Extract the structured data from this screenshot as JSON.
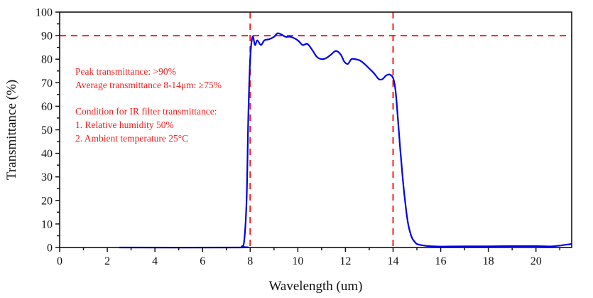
{
  "chart_data": {
    "type": "line",
    "title": "",
    "xlabel": "Wavelength (um)",
    "ylabel": "Transmittance (%)",
    "xlim": [
      0,
      21.5
    ],
    "ylim": [
      0,
      100
    ],
    "xticks": [
      0,
      2,
      4,
      6,
      8,
      10,
      12,
      14,
      16,
      18,
      20
    ],
    "xticks_minor_step": 1,
    "yticks": [
      0,
      10,
      20,
      30,
      40,
      50,
      60,
      70,
      80,
      90,
      100
    ],
    "yticks_minor_step": 5,
    "grid": false,
    "legend": "none",
    "series": [
      {
        "name": "IR filter transmittance",
        "color": "#0000ee",
        "x": [
          2.5,
          7.5,
          7.65,
          7.75,
          7.85,
          7.92,
          8.0,
          8.1,
          8.2,
          8.3,
          8.45,
          8.6,
          8.8,
          9.0,
          9.15,
          9.3,
          9.5,
          9.7,
          10.0,
          10.2,
          10.4,
          10.6,
          10.8,
          11.0,
          11.2,
          11.4,
          11.6,
          11.8,
          11.95,
          12.1,
          12.25,
          12.4,
          12.6,
          12.8,
          13.0,
          13.2,
          13.4,
          13.55,
          13.7,
          13.85,
          14.0,
          14.1,
          14.2,
          14.3,
          14.4,
          14.5,
          14.6,
          14.7,
          14.8,
          14.9,
          15.0,
          15.2,
          15.5,
          16.0,
          17.0,
          18.0,
          19.0,
          20.0,
          20.7,
          21.5
        ],
        "y": [
          0,
          0,
          0.5,
          3,
          20,
          55,
          80,
          89.5,
          86,
          88,
          86,
          88,
          88.5,
          89.5,
          91,
          90.5,
          89.5,
          89.5,
          88,
          86,
          86.5,
          84,
          81,
          80,
          80.5,
          82,
          83.5,
          82,
          79,
          78,
          80,
          80,
          79.5,
          78,
          76,
          74,
          71.5,
          71.5,
          73,
          73.5,
          72,
          67,
          55,
          42,
          30,
          20,
          12,
          7,
          4,
          2.5,
          1.5,
          1,
          0.6,
          0.4,
          0.5,
          0.5,
          0.6,
          0.6,
          0.5,
          1.5
        ]
      }
    ],
    "reference_lines": [
      {
        "orientation": "horizontal",
        "value": 90,
        "color": "#ff1a1a",
        "style": "dashed"
      },
      {
        "orientation": "vertical",
        "value": 8,
        "color": "#ff1a1a",
        "style": "dashed"
      },
      {
        "orientation": "vertical",
        "value": 14,
        "color": "#ff1a1a",
        "style": "dashed"
      }
    ],
    "annotations": [
      "Peak transmittance: >90%",
      "Average transmittance 8-14μm: ≥75%",
      "",
      "Condition for IR filter transmittance:",
      "1. Relative humidity 50%",
      "2. Ambient temperature 25°C"
    ]
  }
}
